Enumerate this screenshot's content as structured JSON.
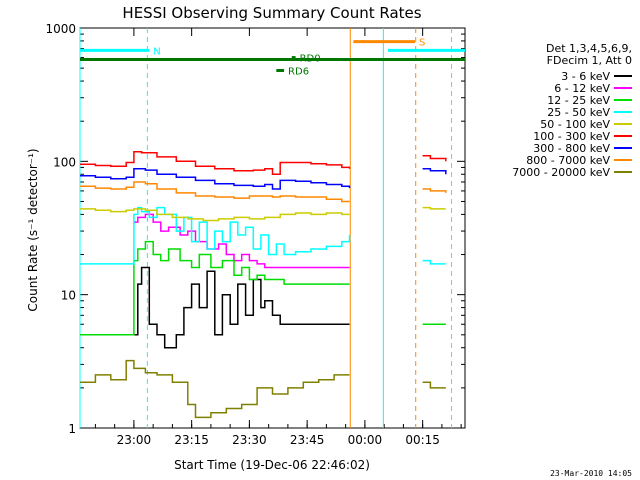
{
  "chart_data": {
    "type": "line",
    "title": "HESSI Observing Summary Count Rates",
    "xlabel": "Start Time (19-Dec-06 22:46:02)",
    "ylabel": "Count Rate (s⁻¹ detector⁻¹)",
    "yscale": "log",
    "ylim": [
      1,
      1000
    ],
    "xlim": [
      0,
      100
    ],
    "x_unit": "minutes after 22:46:02",
    "x_ticks": [
      {
        "x": 14,
        "label": "23:00"
      },
      {
        "x": 29,
        "label": "23:15"
      },
      {
        "x": 44,
        "label": "23:30"
      },
      {
        "x": 59,
        "label": "23:45"
      },
      {
        "x": 74,
        "label": "00:00"
      },
      {
        "x": 89,
        "label": "00:15"
      }
    ],
    "y_ticks": [
      {
        "y": 1,
        "label": "1"
      },
      {
        "y": 10,
        "label": "10"
      },
      {
        "y": 100,
        "label": "100"
      },
      {
        "y": 1000,
        "label": "1000"
      }
    ],
    "legend": {
      "placement": "right",
      "header": [
        "Det 1,3,4,5,6,9,",
        "FDecim 1, Att 0"
      ]
    },
    "series": [
      {
        "name": "3 - 6 keV",
        "color": "#000000",
        "points": [
          [
            14,
            5
          ],
          [
            15,
            12
          ],
          [
            16,
            16
          ],
          [
            18,
            6
          ],
          [
            20,
            5
          ],
          [
            22,
            4
          ],
          [
            25,
            5
          ],
          [
            27,
            8
          ],
          [
            29,
            12
          ],
          [
            31,
            8
          ],
          [
            33,
            15
          ],
          [
            35,
            5
          ],
          [
            37,
            10
          ],
          [
            39,
            6
          ],
          [
            41,
            12
          ],
          [
            43,
            7
          ],
          [
            45,
            13
          ],
          [
            47,
            8
          ],
          [
            48,
            9
          ],
          [
            50,
            7
          ],
          [
            52,
            6
          ],
          [
            55,
            6
          ],
          [
            58,
            6
          ],
          [
            60,
            6
          ],
          [
            64,
            6
          ],
          [
            68,
            6
          ],
          [
            70,
            6
          ]
        ]
      },
      {
        "name": "6 - 12 keV",
        "color": "#ff00ff",
        "points": [
          [
            14,
            35
          ],
          [
            15,
            38
          ],
          [
            17,
            40
          ],
          [
            19,
            35
          ],
          [
            21,
            30
          ],
          [
            23,
            32
          ],
          [
            26,
            28
          ],
          [
            28,
            30
          ],
          [
            30,
            25
          ],
          [
            33,
            22
          ],
          [
            36,
            24
          ],
          [
            38,
            20
          ],
          [
            40,
            18
          ],
          [
            42,
            20
          ],
          [
            44,
            18
          ],
          [
            46,
            17
          ],
          [
            48,
            16
          ],
          [
            50,
            16
          ],
          [
            52,
            16
          ],
          [
            56,
            16
          ],
          [
            60,
            16
          ],
          [
            64,
            16
          ],
          [
            68,
            16
          ],
          [
            70,
            16
          ]
        ]
      },
      {
        "name": "12 - 25 keV",
        "color": "#00dd00",
        "points": [
          [
            0,
            5
          ],
          [
            4,
            5
          ],
          [
            8,
            5
          ],
          [
            12,
            5
          ],
          [
            14,
            18
          ],
          [
            15,
            22
          ],
          [
            17,
            25
          ],
          [
            19,
            20
          ],
          [
            21,
            18
          ],
          [
            23,
            22
          ],
          [
            26,
            18
          ],
          [
            29,
            16
          ],
          [
            31,
            20
          ],
          [
            34,
            16
          ],
          [
            37,
            18
          ],
          [
            40,
            14
          ],
          [
            42,
            16
          ],
          [
            44,
            13
          ],
          [
            46,
            14
          ],
          [
            48,
            13
          ],
          [
            50,
            13
          ],
          [
            53,
            12
          ],
          [
            57,
            12
          ],
          [
            61,
            12
          ],
          [
            65,
            12
          ],
          [
            70,
            12
          ],
          [
            89,
            6
          ],
          [
            91,
            6
          ],
          [
            95,
            6
          ]
        ]
      },
      {
        "name": "25 - 50 keV",
        "color": "#00ffff",
        "points": [
          [
            0,
            17
          ],
          [
            4,
            17
          ],
          [
            8,
            17
          ],
          [
            12,
            17
          ],
          [
            14,
            40
          ],
          [
            15,
            45
          ],
          [
            16,
            42
          ],
          [
            18,
            38
          ],
          [
            20,
            45
          ],
          [
            22,
            40
          ],
          [
            25,
            30
          ],
          [
            27,
            38
          ],
          [
            29,
            25
          ],
          [
            31,
            35
          ],
          [
            33,
            22
          ],
          [
            35,
            30
          ],
          [
            37,
            25
          ],
          [
            39,
            35
          ],
          [
            41,
            28
          ],
          [
            43,
            32
          ],
          [
            45,
            22
          ],
          [
            47,
            28
          ],
          [
            49,
            20
          ],
          [
            51,
            24
          ],
          [
            53,
            20
          ],
          [
            56,
            21
          ],
          [
            60,
            22
          ],
          [
            64,
            23
          ],
          [
            68,
            25
          ],
          [
            70,
            28
          ],
          [
            89,
            18
          ],
          [
            91,
            17
          ],
          [
            95,
            17
          ]
        ]
      },
      {
        "name": "50 - 100 keV",
        "color": "#cccc00",
        "points": [
          [
            0,
            44
          ],
          [
            4,
            43
          ],
          [
            8,
            42
          ],
          [
            12,
            43
          ],
          [
            14,
            44
          ],
          [
            17,
            43
          ],
          [
            20,
            40
          ],
          [
            24,
            38
          ],
          [
            28,
            37
          ],
          [
            32,
            36
          ],
          [
            36,
            37
          ],
          [
            40,
            38
          ],
          [
            44,
            37
          ],
          [
            48,
            38
          ],
          [
            52,
            40
          ],
          [
            56,
            41
          ],
          [
            60,
            40
          ],
          [
            64,
            41
          ],
          [
            68,
            40
          ],
          [
            70,
            40
          ],
          [
            89,
            45
          ],
          [
            91,
            44
          ],
          [
            95,
            44
          ]
        ]
      },
      {
        "name": "100 - 300 keV",
        "color": "#ff0000",
        "points": [
          [
            0,
            95
          ],
          [
            4,
            93
          ],
          [
            8,
            92
          ],
          [
            12,
            98
          ],
          [
            14,
            118
          ],
          [
            16,
            116
          ],
          [
            20,
            108
          ],
          [
            25,
            100
          ],
          [
            30,
            92
          ],
          [
            35,
            88
          ],
          [
            40,
            85
          ],
          [
            45,
            86
          ],
          [
            48,
            88
          ],
          [
            50,
            80
          ],
          [
            52,
            98
          ],
          [
            56,
            98
          ],
          [
            60,
            96
          ],
          [
            64,
            94
          ],
          [
            68,
            90
          ],
          [
            70,
            88
          ],
          [
            89,
            110
          ],
          [
            91,
            105
          ],
          [
            95,
            100
          ]
        ]
      },
      {
        "name": "300 - 800 keV",
        "color": "#0000ff",
        "points": [
          [
            0,
            78
          ],
          [
            4,
            76
          ],
          [
            8,
            74
          ],
          [
            12,
            76
          ],
          [
            14,
            88
          ],
          [
            17,
            86
          ],
          [
            20,
            80
          ],
          [
            25,
            76
          ],
          [
            30,
            72
          ],
          [
            35,
            68
          ],
          [
            40,
            66
          ],
          [
            45,
            65
          ],
          [
            48,
            67
          ],
          [
            50,
            62
          ],
          [
            52,
            72
          ],
          [
            56,
            71
          ],
          [
            60,
            69
          ],
          [
            64,
            67
          ],
          [
            68,
            65
          ],
          [
            70,
            63
          ],
          [
            89,
            88
          ],
          [
            91,
            85
          ],
          [
            95,
            80
          ]
        ]
      },
      {
        "name": "800 - 7000 keV",
        "color": "#ff8800",
        "points": [
          [
            0,
            65
          ],
          [
            4,
            63
          ],
          [
            8,
            62
          ],
          [
            12,
            64
          ],
          [
            14,
            70
          ],
          [
            17,
            68
          ],
          [
            20,
            62
          ],
          [
            25,
            58
          ],
          [
            30,
            55
          ],
          [
            35,
            54
          ],
          [
            40,
            53
          ],
          [
            44,
            55
          ],
          [
            48,
            55
          ],
          [
            50,
            54
          ],
          [
            52,
            55
          ],
          [
            56,
            54
          ],
          [
            60,
            54
          ],
          [
            64,
            52
          ],
          [
            68,
            50
          ],
          [
            70,
            50
          ],
          [
            89,
            62
          ],
          [
            91,
            60
          ],
          [
            95,
            58
          ]
        ]
      },
      {
        "name": "7000 - 20000 keV",
        "color": "#808000",
        "points": [
          [
            0,
            2.2
          ],
          [
            4,
            2.5
          ],
          [
            8,
            2.3
          ],
          [
            12,
            3.2
          ],
          [
            14,
            2.8
          ],
          [
            17,
            2.6
          ],
          [
            20,
            2.5
          ],
          [
            24,
            2.2
          ],
          [
            28,
            1.5
          ],
          [
            30,
            1.2
          ],
          [
            34,
            1.3
          ],
          [
            38,
            1.4
          ],
          [
            42,
            1.5
          ],
          [
            46,
            2
          ],
          [
            50,
            1.8
          ],
          [
            54,
            2
          ],
          [
            58,
            2.2
          ],
          [
            62,
            2.3
          ],
          [
            66,
            2.5
          ],
          [
            70,
            2.5
          ],
          [
            89,
            2.2
          ],
          [
            91,
            2
          ],
          [
            95,
            2
          ]
        ]
      }
    ],
    "annotations": [
      {
        "label": "N",
        "x": [
          0,
          18
        ],
        "y": 680,
        "color": "#00ffff"
      },
      {
        "label": "",
        "x": [
          0,
          100
        ],
        "y": 580,
        "color": "#007700"
      },
      {
        "label": "RD0",
        "x": [
          55,
          56
        ],
        "y": 600,
        "color": "#007700"
      },
      {
        "label": "RD6",
        "x": [
          51,
          53
        ],
        "y": 480,
        "color": "#007700"
      },
      {
        "label": "S",
        "x": [
          71,
          87
        ],
        "y": 790,
        "color": "#ff8800"
      },
      {
        "label": "",
        "x": [
          80,
          100
        ],
        "y": 680,
        "color": "#00ffff"
      }
    ],
    "vertical_markers": [
      {
        "x": 0,
        "color": "#00ffff",
        "style": "solid"
      },
      {
        "x": 17.5,
        "color": "#00ffff",
        "style": "dashed"
      },
      {
        "x": 70.2,
        "color": "#ff8800",
        "style": "solid"
      },
      {
        "x": 78.8,
        "color": "#00ffff",
        "style": "solid"
      },
      {
        "x": 87.2,
        "color": "#ff8800",
        "style": "dashed"
      },
      {
        "x": 96.5,
        "color": "#00ffff",
        "style": "dashed"
      }
    ],
    "gaps": [
      [
        70,
        89
      ]
    ]
  },
  "footer_timestamp": "23-Mar-2010 14:05"
}
